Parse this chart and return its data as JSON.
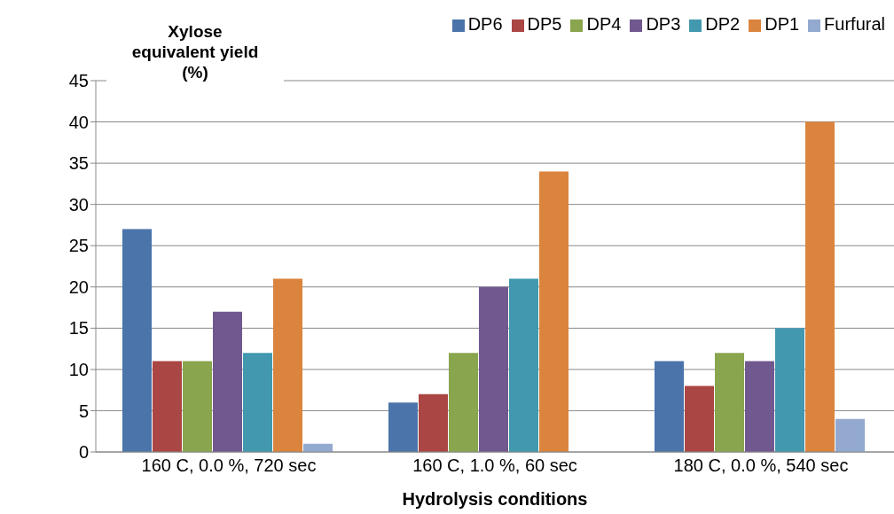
{
  "chart_data": {
    "type": "bar",
    "xlabel": "Hydrolysis conditions",
    "ylabel": "Xylose equivalent yield (%)",
    "categories": [
      "160 C, 0.0 %, 720 sec",
      "160 C, 1.0 %, 60 sec",
      "180 C, 0.0 %, 540 sec"
    ],
    "series": [
      {
        "name": "DP6",
        "color": "#4a74aa",
        "values": [
          27,
          6,
          11
        ]
      },
      {
        "name": "DP5",
        "color": "#aa4643",
        "values": [
          11,
          7,
          8
        ]
      },
      {
        "name": "DP4",
        "color": "#89a54e",
        "values": [
          11,
          12,
          12
        ]
      },
      {
        "name": "DP3",
        "color": "#71588f",
        "values": [
          17,
          20,
          11
        ]
      },
      {
        "name": "DP2",
        "color": "#4198af",
        "values": [
          12,
          21,
          15
        ]
      },
      {
        "name": "DP1",
        "color": "#db843d",
        "values": [
          21,
          34,
          40
        ]
      },
      {
        "name": "Furfural",
        "color": "#93a9cf",
        "values": [
          1,
          0,
          4
        ]
      }
    ],
    "ylim": [
      0,
      45
    ],
    "yticks": [
      0,
      5,
      10,
      15,
      20,
      25,
      30,
      35,
      40,
      45
    ],
    "grid": "y",
    "legend": "top"
  }
}
